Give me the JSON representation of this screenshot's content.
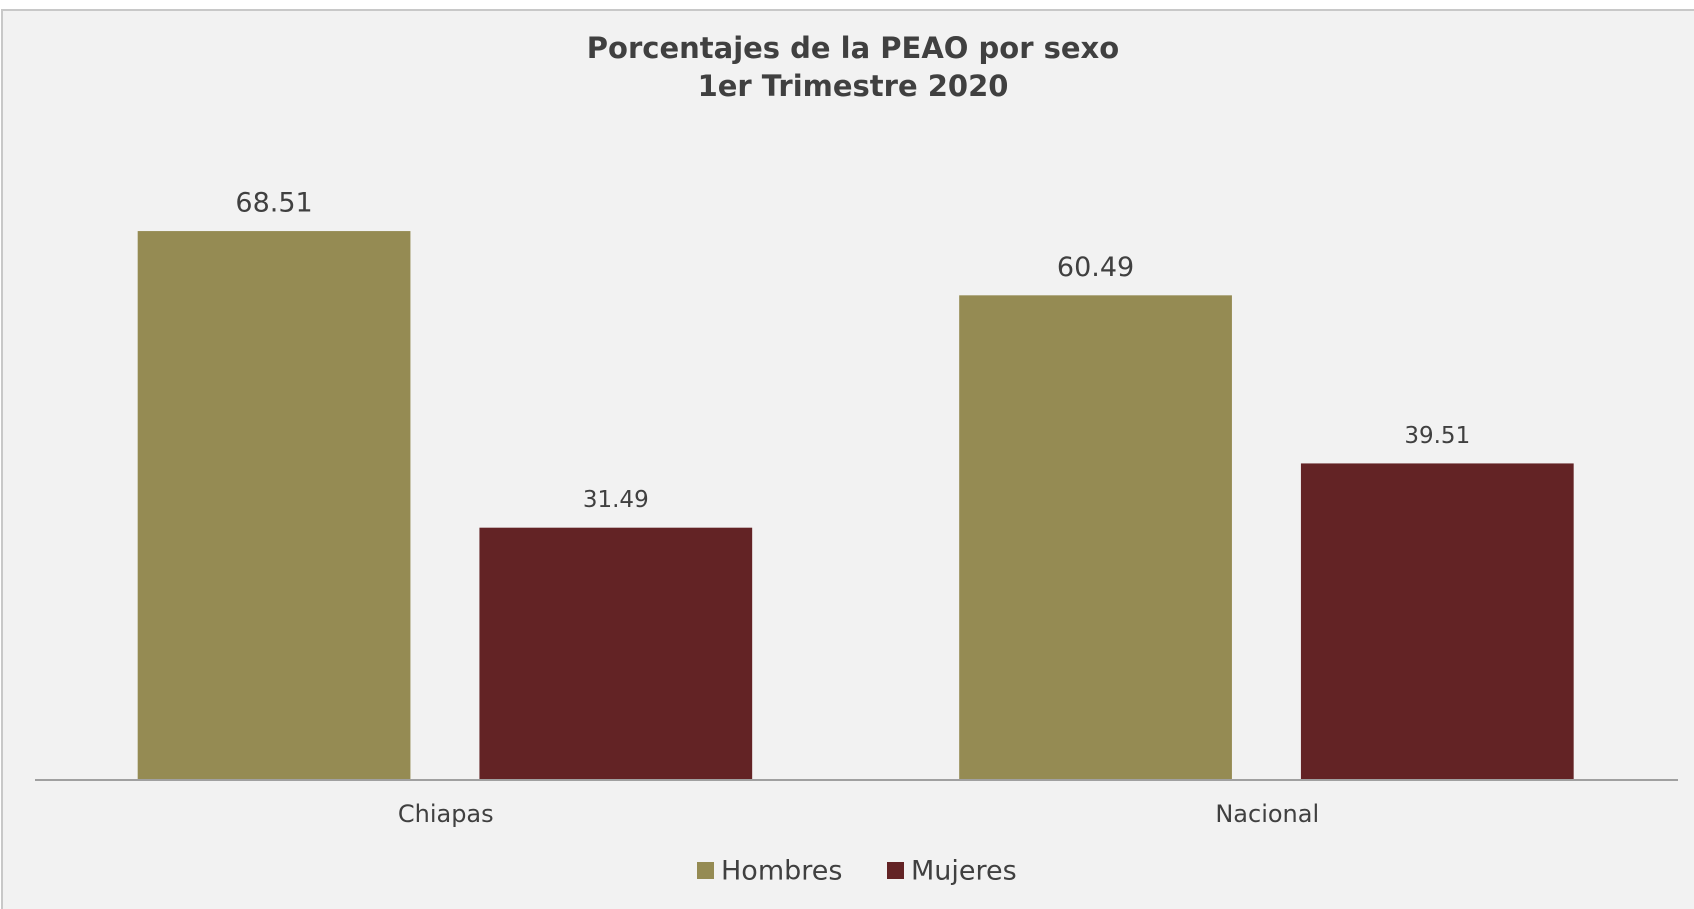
{
  "chart_data": {
    "type": "bar",
    "title": [
      "Porcentajes de la PEAO  por sexo",
      "1er Trimestre 2020"
    ],
    "categories": [
      "Chiapas",
      "Nacional"
    ],
    "series": [
      {
        "name": "Hombres",
        "color": "#958b53",
        "values": [
          68.51,
          60.49
        ]
      },
      {
        "name": "Mujeres",
        "color": "#632325",
        "values": [
          31.49,
          39.51
        ]
      }
    ],
    "ylim": [
      0,
      80
    ],
    "legend": "bottom"
  }
}
